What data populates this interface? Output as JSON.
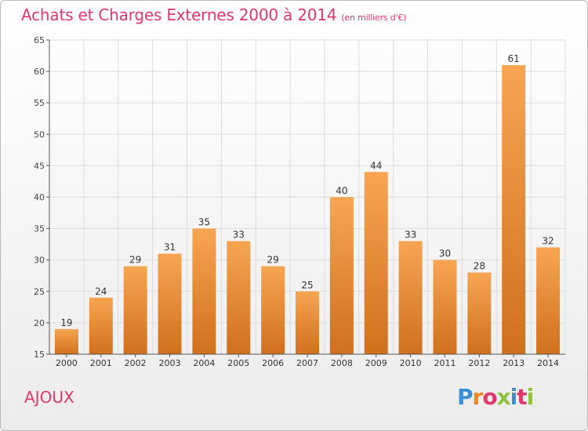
{
  "header": {
    "title": "Achats et Charges Externes 2000 à 2014",
    "unit": "(en milliers d'€)"
  },
  "footer": {
    "city": "AJOUX",
    "logo": "Proxiti",
    "logo_colors": [
      "#3a8fd6",
      "#f08a1c",
      "#e0386b",
      "#8cc33f",
      "#3a8fd6",
      "#e0386b",
      "#8cc33f"
    ]
  },
  "colors": {
    "bar_light": "#f7a552",
    "bar_dark": "#d0701c",
    "title": "#e0386b",
    "grid": "#dcdcdc"
  },
  "chart_data": {
    "type": "bar",
    "title": "Achats et Charges Externes 2000 à 2014",
    "subtitle": "(en milliers d'€)",
    "xlabel": "",
    "ylabel": "",
    "categories": [
      "2000",
      "2001",
      "2002",
      "2003",
      "2004",
      "2005",
      "2006",
      "2007",
      "2008",
      "2009",
      "2010",
      "2011",
      "2012",
      "2013",
      "2014"
    ],
    "values": [
      19,
      24,
      29,
      31,
      35,
      33,
      29,
      25,
      40,
      44,
      33,
      30,
      28,
      61,
      32
    ],
    "ylim": [
      15,
      65
    ],
    "yticks": [
      15,
      20,
      25,
      30,
      35,
      40,
      45,
      50,
      55,
      60,
      65
    ],
    "grid": true,
    "data_labels": true
  }
}
